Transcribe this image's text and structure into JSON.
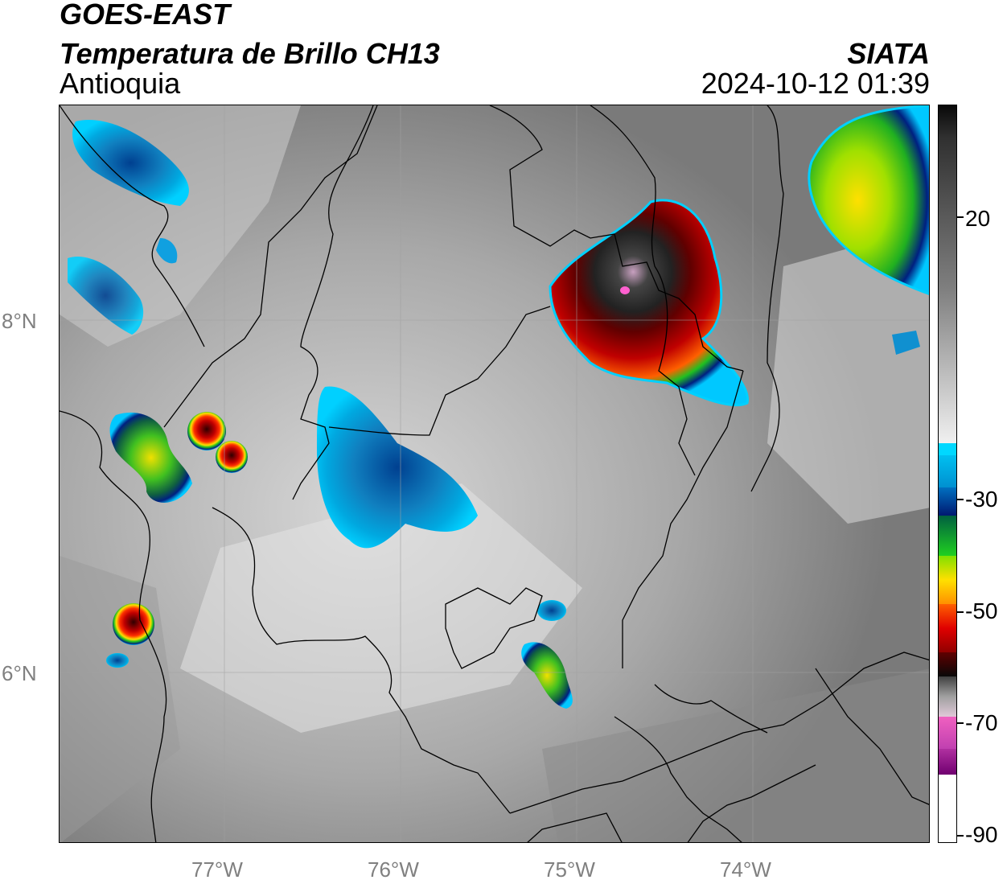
{
  "header": {
    "satellite": "GOES-EAST",
    "product": "Temperatura de Brillo CH13",
    "region": "Antioquia",
    "agency": "SIATA",
    "datetime": "2024-10-12 01:39"
  },
  "map": {
    "lon_labels": [
      "77°W",
      "76°W",
      "75°W",
      "74°W"
    ],
    "lat_labels": [
      "8°N",
      "6°N"
    ],
    "extent": {
      "lon": [
        -77.95,
        -73.0
      ],
      "lat": [
        5.0,
        9.2
      ]
    }
  },
  "colorbar": {
    "unit_range": [
      -90,
      30
    ],
    "tick_labels": [
      "20",
      "-30",
      "-50",
      "-70",
      "-90"
    ],
    "tick_values": [
      20,
      -30,
      -50,
      -70,
      -90
    ]
  },
  "colors": {
    "cold_core": "#111111",
    "very_cold": "#e060c0",
    "red": "#c00000",
    "orange": "#ff8000",
    "yellow": "#ffe000",
    "green": "#20c020",
    "dark_blue": "#002080",
    "cyan": "#00c8ff"
  }
}
